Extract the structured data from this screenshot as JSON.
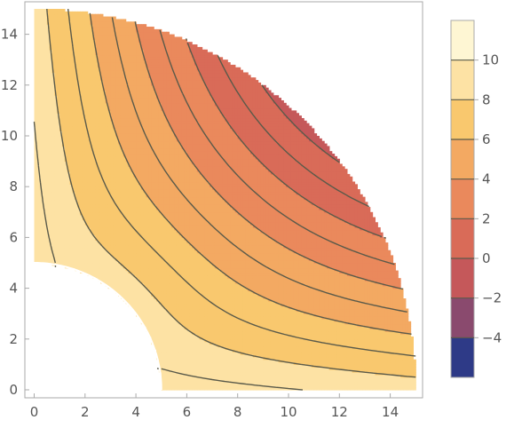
{
  "chart_data": {
    "type": "contour",
    "title": "",
    "xlabel": "",
    "ylabel": "",
    "xlim": [
      0,
      15
    ],
    "ylim": [
      0,
      15
    ],
    "x_ticks": [
      "0",
      "2",
      "4",
      "6",
      "8",
      "10",
      "12",
      "14"
    ],
    "y_ticks": [
      "0",
      "2",
      "4",
      "6",
      "8",
      "10",
      "12",
      "14"
    ],
    "domain": "quarter annulus, inner radius 5, outer radius 15",
    "contour_levels": [
      -4,
      -3,
      -2,
      -1,
      0,
      1,
      2,
      3,
      4,
      5,
      6,
      7,
      8,
      9,
      10
    ],
    "colorbar": {
      "range": [
        -6,
        12
      ],
      "tick_labels": [
        "10",
        "8",
        "6",
        "4",
        "2",
        "0",
        "−2",
        "−4"
      ],
      "tick_values": [
        10,
        8,
        6,
        4,
        2,
        0,
        -2,
        -4
      ],
      "bands": [
        {
          "from": -6,
          "to": -4,
          "color": "#2e3a87"
        },
        {
          "from": -4,
          "to": -2,
          "color": "#8a4a6e"
        },
        {
          "from": -2,
          "to": 0,
          "color": "#c5585a"
        },
        {
          "from": 0,
          "to": 2,
          "color": "#d96b58"
        },
        {
          "from": 2,
          "to": 4,
          "color": "#ea895c"
        },
        {
          "from": 4,
          "to": 6,
          "color": "#f3a962"
        },
        {
          "from": 6,
          "to": 8,
          "color": "#f9c86e"
        },
        {
          "from": 8,
          "to": 10,
          "color": "#fde2a4"
        },
        {
          "from": 10,
          "to": 12,
          "color": "#fef6d3"
        }
      ]
    },
    "colors": {
      "frame": "#aaaaaa",
      "contour_line": "#5a5a4a",
      "tick_text": "#555555"
    }
  }
}
